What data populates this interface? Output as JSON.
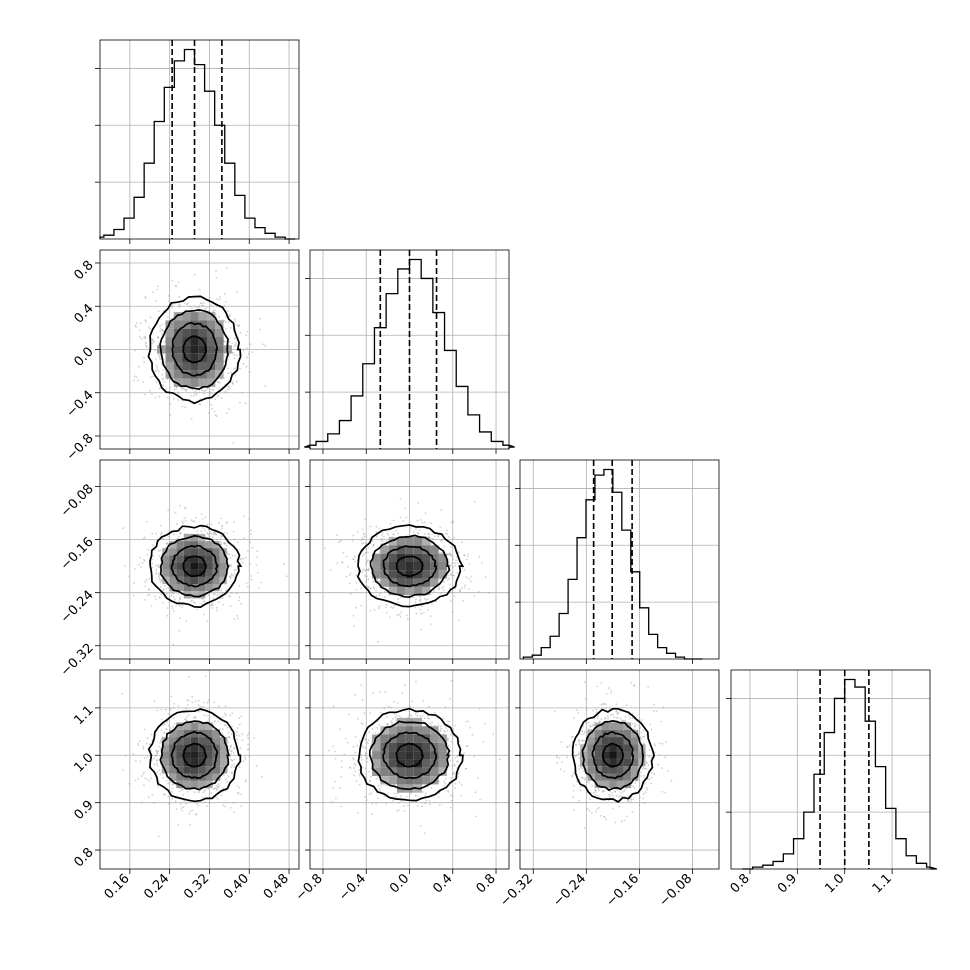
{
  "chart_data": {
    "type": "corner",
    "grid": true,
    "colors": {
      "ink": "#000000",
      "grid": "#b0b0b0",
      "scatter": "#9a9a9a"
    },
    "parameters": [
      {
        "index": 0,
        "range": [
          0.1,
          0.5
        ],
        "ticks": [
          "0.16",
          "0.24",
          "0.32",
          "0.40",
          "0.48"
        ],
        "tick_values": [
          0.16,
          0.24,
          0.32,
          0.4,
          0.48
        ],
        "center": 0.29,
        "sigma": 0.045,
        "quantiles": [
          0.245,
          0.29,
          0.345
        ]
      },
      {
        "index": 1,
        "range": [
          -0.92,
          0.92
        ],
        "ticks": [
          "−0.8",
          "−0.4",
          "0.0",
          "0.4",
          "0.8"
        ],
        "tick_values": [
          -0.8,
          -0.4,
          0.0,
          0.4,
          0.8
        ],
        "center": 0.0,
        "sigma": 0.24,
        "quantiles": [
          -0.27,
          0.0,
          0.25
        ]
      },
      {
        "index": 2,
        "range": [
          -0.34,
          -0.04
        ],
        "ticks": [
          "−0.32",
          "−0.24",
          "−0.16",
          "−0.08"
        ],
        "tick_values": [
          -0.32,
          -0.24,
          -0.16,
          -0.08
        ],
        "center": -0.2,
        "sigma": 0.03,
        "quantiles": [
          -0.229,
          -0.201,
          -0.171
        ]
      },
      {
        "index": 3,
        "range": [
          0.76,
          1.18
        ],
        "ticks": [
          "0.8",
          "0.9",
          "1.0",
          "1.1"
        ],
        "tick_values": [
          0.8,
          0.9,
          1.0,
          1.1
        ],
        "center": 1.0,
        "sigma": 0.048,
        "quantiles": [
          0.948,
          1.0,
          1.051
        ]
      }
    ],
    "histograms": [
      {
        "param": 0,
        "bins": 20,
        "counts": [
          1,
          2,
          5,
          11,
          22,
          40,
          62,
          80,
          94,
          100,
          92,
          78,
          60,
          40,
          23,
          11,
          6,
          3,
          1,
          0
        ]
      },
      {
        "param": 1,
        "bins": 20,
        "counts": [
          1,
          2,
          4,
          8,
          15,
          28,
          45,
          64,
          82,
          95,
          100,
          90,
          72,
          52,
          33,
          18,
          9,
          4,
          2,
          1
        ]
      },
      {
        "param": 2,
        "bins": 20,
        "counts": [
          1,
          2,
          6,
          12,
          24,
          42,
          64,
          84,
          97,
          100,
          88,
          68,
          46,
          27,
          13,
          6,
          3,
          1,
          0,
          0
        ]
      },
      {
        "param": 3,
        "bins": 20,
        "counts": [
          0,
          1,
          2,
          4,
          8,
          16,
          30,
          50,
          72,
          90,
          100,
          96,
          78,
          54,
          32,
          16,
          7,
          3,
          1,
          0
        ]
      }
    ],
    "contour_levels_sigma": [
      0.5,
      1.0,
      1.5,
      2.0
    ],
    "dashed_lines": "quantiles"
  }
}
